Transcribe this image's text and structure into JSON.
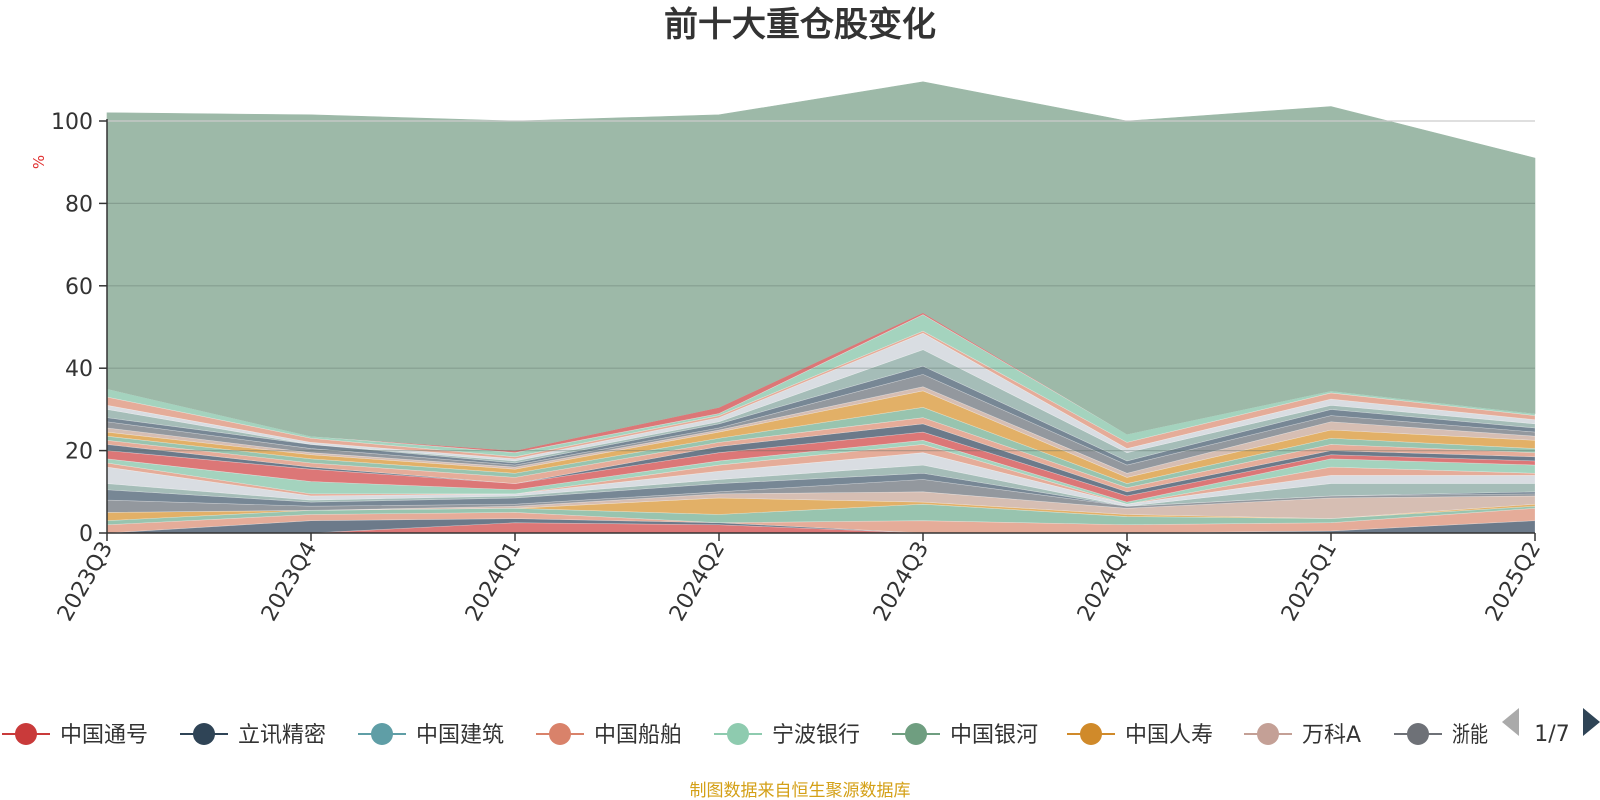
{
  "chart_data": {
    "type": "area",
    "title": "前十大重仓股变化",
    "ylabel": "%",
    "ylim": [
      0,
      100
    ],
    "yticks": [
      "0",
      "20",
      "40",
      "60",
      "80",
      "100"
    ],
    "grid": true,
    "categories": [
      "2023Q3",
      "2023Q4",
      "2024Q1",
      "2024Q2",
      "2024Q3",
      "2024Q4",
      "2025Q1",
      "2025Q2"
    ],
    "stack_colors": [
      "#d96b6b",
      "#5f6f80",
      "#e3a590",
      "#8fbfa8",
      "#e0a95a",
      "#d2b8ac",
      "#8a8f96",
      "#6b7d8c",
      "#9db7b2",
      "#d6dae0",
      "#e3a590",
      "#9ccfb8"
    ],
    "series": [
      {
        "values": [
          0,
          0,
          2.5,
          2,
          0,
          0,
          0,
          0
        ]
      },
      {
        "values": [
          0,
          3,
          1,
          0.5,
          0,
          0,
          0.5,
          3
        ]
      },
      {
        "values": [
          2,
          1.5,
          1.5,
          0,
          3,
          2,
          2,
          3
        ]
      },
      {
        "values": [
          1,
          1,
          1,
          2,
          4,
          2,
          1,
          0.5
        ]
      },
      {
        "values": [
          2,
          0,
          0,
          4,
          0.5,
          0.5,
          0,
          0.5
        ]
      },
      {
        "values": [
          0,
          0,
          0.5,
          1,
          2.5,
          1.5,
          5,
          2
        ]
      },
      {
        "values": [
          3,
          1,
          0.5,
          0.5,
          3,
          0.5,
          0.5,
          0.5
        ]
      },
      {
        "values": [
          2.5,
          1,
          1.5,
          2,
          1.5,
          0,
          0,
          0.5
        ]
      },
      {
        "values": [
          1.5,
          0.5,
          0.5,
          1,
          2,
          0,
          3,
          2
        ]
      },
      {
        "values": [
          4,
          1,
          0.5,
          2,
          3,
          0.5,
          2,
          2
        ]
      },
      {
        "values": [
          1,
          0.5,
          0,
          1.5,
          2,
          0,
          2,
          0.5
        ]
      },
      {
        "values": [
          1,
          3,
          1,
          1,
          1,
          0.5,
          2,
          2
        ]
      },
      {
        "values": [
          2,
          3,
          1.5,
          2,
          2,
          1.5,
          1,
          1
        ]
      },
      {
        "values": [
          1.5,
          0.5,
          0,
          1.5,
          2,
          1,
          1,
          1
        ]
      },
      {
        "values": [
          1,
          1,
          1.5,
          1,
          1.5,
          1,
          1.5,
          1
        ]
      },
      {
        "values": [
          1,
          1,
          1,
          1,
          2.5,
          1,
          1.5,
          1
        ]
      },
      {
        "values": [
          1,
          1,
          1,
          1.5,
          4,
          1.5,
          2,
          2
        ]
      },
      {
        "values": [
          1,
          0.5,
          0.5,
          0.5,
          1,
          1,
          2,
          1
        ]
      },
      {
        "values": [
          1.5,
          1,
          0.5,
          0.5,
          3,
          2,
          1.5,
          1
        ]
      },
      {
        "values": [
          1,
          1,
          0.5,
          1,
          2,
          1,
          1.5,
          1
        ]
      },
      {
        "values": [
          2,
          0,
          0.5,
          0.5,
          4,
          2,
          1,
          1
        ]
      },
      {
        "values": [
          1,
          0.5,
          0.5,
          1,
          4,
          1,
          1.5,
          1
        ]
      },
      {
        "values": [
          2,
          1,
          0.5,
          0.5,
          0.5,
          1.5,
          1.5,
          1
        ]
      },
      {
        "values": [
          2,
          0.5,
          1,
          0.5,
          4,
          2,
          0.5,
          0.5
        ]
      },
      {
        "values": [
          0,
          0,
          0.5,
          1.5,
          0.5,
          0,
          0,
          0
        ]
      },
      {
        "values": [
          67,
          78,
          80,
          71,
          56,
          76,
          69,
          62
        ]
      }
    ]
  },
  "legend": {
    "items": [
      {
        "label": "中国通号",
        "color": "#c93a3a"
      },
      {
        "label": "立讯精密",
        "color": "#2f4456"
      },
      {
        "label": "中国建筑",
        "color": "#5f9ea6"
      },
      {
        "label": "中国船舶",
        "color": "#d9826a"
      },
      {
        "label": "宁波银行",
        "color": "#8ecbaf"
      },
      {
        "label": "中国银河",
        "color": "#6f9e80"
      },
      {
        "label": "中国人寿",
        "color": "#d08a2a"
      },
      {
        "label": "万科A",
        "color": "#c4a096"
      },
      {
        "label": "浙能",
        "color": "#6e7177"
      }
    ],
    "page": "1/7"
  },
  "source": "制图数据来自恒生聚源数据库"
}
